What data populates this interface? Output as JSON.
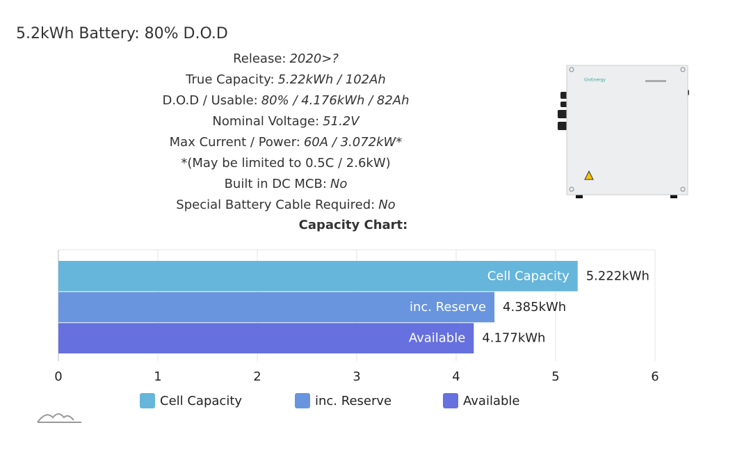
{
  "header": {
    "title": "5.2kWh Battery: 80% D.O.D"
  },
  "specs": [
    {
      "label": "Release:",
      "value": "2020>?"
    },
    {
      "label": "True Capacity:",
      "value": "5.22kWh / 102Ah"
    },
    {
      "label": "D.O.D / Usable:",
      "value": "80% / 4.176kWh / 82Ah"
    },
    {
      "label": "Nominal Voltage:",
      "value": "51.2V"
    },
    {
      "label": "Max Current / Power:",
      "value": "60A / 3.072kW*"
    },
    {
      "label": "*(May be limited to 0.5C / 2.6kW)"
    },
    {
      "label": "Built in DC MCB:",
      "value": "No"
    },
    {
      "label": "Special Battery Cable Required:",
      "value": "No"
    }
  ],
  "chart_heading": "Capacity Chart:",
  "image": {
    "brand": "GivEnergy"
  },
  "chart_data": {
    "type": "bar",
    "orientation": "horizontal",
    "series": [
      {
        "name": "Cell Capacity",
        "color": "#66b5db",
        "values": [
          5.222
        ],
        "value_labels": [
          "5.222kWh"
        ]
      },
      {
        "name": "inc. Reserve",
        "color": "#6895de",
        "values": [
          4.385
        ],
        "value_labels": [
          "4.385kWh"
        ]
      },
      {
        "name": "Available",
        "color": "#6670de",
        "values": [
          4.177
        ],
        "value_labels": [
          "4.177kWh"
        ]
      }
    ],
    "xlim": [
      0,
      6
    ],
    "xticks": [
      0,
      1,
      2,
      3,
      4,
      5,
      6
    ],
    "grid": true,
    "legend": "bottom"
  }
}
